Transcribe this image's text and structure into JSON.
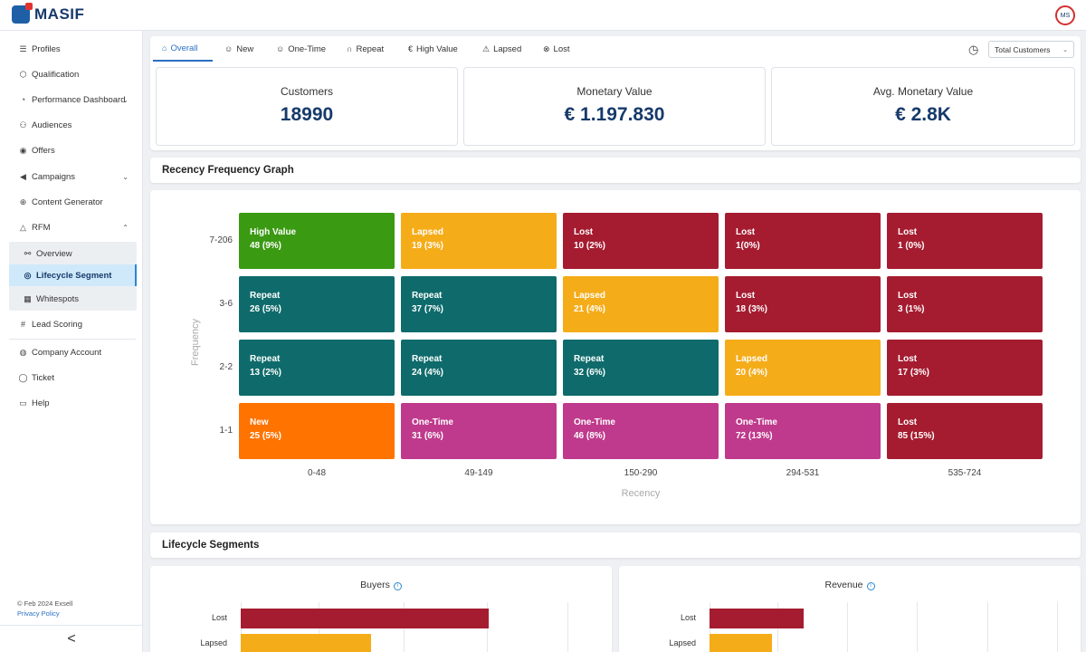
{
  "brand": {
    "name": "MASIF"
  },
  "user": {
    "initials": "MS"
  },
  "sidebar": {
    "items": [
      {
        "label": "Profiles",
        "icon": "list-icon"
      },
      {
        "label": "Qualification",
        "icon": "box-icon"
      },
      {
        "label": "Performance Dashboard",
        "icon": "chart-icon"
      },
      {
        "label": "Audiences",
        "icon": "audience-icon"
      },
      {
        "label": "Offers",
        "icon": "tag-icon"
      },
      {
        "label": "Campaigns",
        "icon": "megaphone-icon"
      },
      {
        "label": "Content Generator",
        "icon": "globe-icon"
      },
      {
        "label": "RFM",
        "icon": "triangle-icon"
      }
    ],
    "rfm_sub": [
      {
        "label": "Overview"
      },
      {
        "label": "Lifecycle Segment"
      },
      {
        "label": "Whitespots"
      }
    ],
    "items_after": [
      {
        "label": "Lead Scoring"
      },
      {
        "label": "Company Account"
      },
      {
        "label": "Ticket"
      },
      {
        "label": "Help"
      }
    ],
    "footer_copy": "© Feb 2024 Exsell",
    "footer_link": "Privacy Policy",
    "collapse_glyph": "<"
  },
  "tabs": [
    {
      "label": "Overall"
    },
    {
      "label": "New"
    },
    {
      "label": "One-Time"
    },
    {
      "label": "Repeat"
    },
    {
      "label": "High Value"
    },
    {
      "label": "Lapsed"
    },
    {
      "label": "Lost"
    }
  ],
  "filter": {
    "selected": "Total Customers"
  },
  "kpis": [
    {
      "label": "Customers",
      "value": "18990"
    },
    {
      "label": "Monetary Value",
      "value": "€ 1.197.830"
    },
    {
      "label": "Avg. Monetary Value",
      "value": "€ 2.8K"
    }
  ],
  "rf_graph": {
    "title": "Recency Frequency Graph",
    "y_axis": "Frequency",
    "x_axis": "Recency",
    "rows": [
      "7-206",
      "3-6",
      "2-2",
      "1-1"
    ],
    "cols": [
      "0-48",
      "49-149",
      "150-290",
      "294-531",
      "535-724"
    ],
    "cells": [
      [
        {
          "seg": "High Value",
          "val": "48 (9%)",
          "color": "#3a9a12"
        },
        {
          "seg": "Lapsed",
          "val": "19 (3%)",
          "color": "#f5ac19"
        },
        {
          "seg": "Lost",
          "val": "10 (2%)",
          "color": "#a51c30"
        },
        {
          "seg": "Lost",
          "val": "1(0%)",
          "color": "#a51c30"
        },
        {
          "seg": "Lost",
          "val": "1 (0%)",
          "color": "#a51c30"
        }
      ],
      [
        {
          "seg": "Repeat",
          "val": "26 (5%)",
          "color": "#0f6b6b"
        },
        {
          "seg": "Repeat",
          "val": "37 (7%)",
          "color": "#0f6b6b"
        },
        {
          "seg": "Lapsed",
          "val": "21 (4%)",
          "color": "#f5ac19"
        },
        {
          "seg": "Lost",
          "val": "18 (3%)",
          "color": "#a51c30"
        },
        {
          "seg": "Lost",
          "val": "3 (1%)",
          "color": "#a51c30"
        }
      ],
      [
        {
          "seg": "Repeat",
          "val": "13 (2%)",
          "color": "#0f6b6b"
        },
        {
          "seg": "Repeat",
          "val": "24 (4%)",
          "color": "#0f6b6b"
        },
        {
          "seg": "Repeat",
          "val": "32 (6%)",
          "color": "#0f6b6b"
        },
        {
          "seg": "Lapsed",
          "val": "20 (4%)",
          "color": "#f5ac19"
        },
        {
          "seg": "Lost",
          "val": "17 (3%)",
          "color": "#a51c30"
        }
      ],
      [
        {
          "seg": "New",
          "val": "25 (5%)",
          "color": "#ff7300"
        },
        {
          "seg": "One-Time",
          "val": "31 (6%)",
          "color": "#bf3a8c"
        },
        {
          "seg": "One-Time",
          "val": "46 (8%)",
          "color": "#bf3a8c"
        },
        {
          "seg": "One-Time",
          "val": "72 (13%)",
          "color": "#bf3a8c"
        },
        {
          "seg": "Lost",
          "val": "85 (15%)",
          "color": "#a51c30"
        }
      ]
    ]
  },
  "lifecycle": {
    "title": "Lifecycle Segments",
    "buyers": {
      "title": "Buyers",
      "bars": [
        {
          "label": "Lost",
          "color": "#a51c30",
          "fraction": 0.76
        },
        {
          "label": "Lapsed",
          "color": "#f5ac19",
          "fraction": 0.4
        }
      ]
    },
    "revenue": {
      "title": "Revenue",
      "bars": [
        {
          "label": "Lost",
          "color": "#a51c30",
          "fraction": 0.27
        },
        {
          "label": "Lapsed",
          "color": "#f5ac19",
          "fraction": 0.18
        }
      ]
    }
  }
}
